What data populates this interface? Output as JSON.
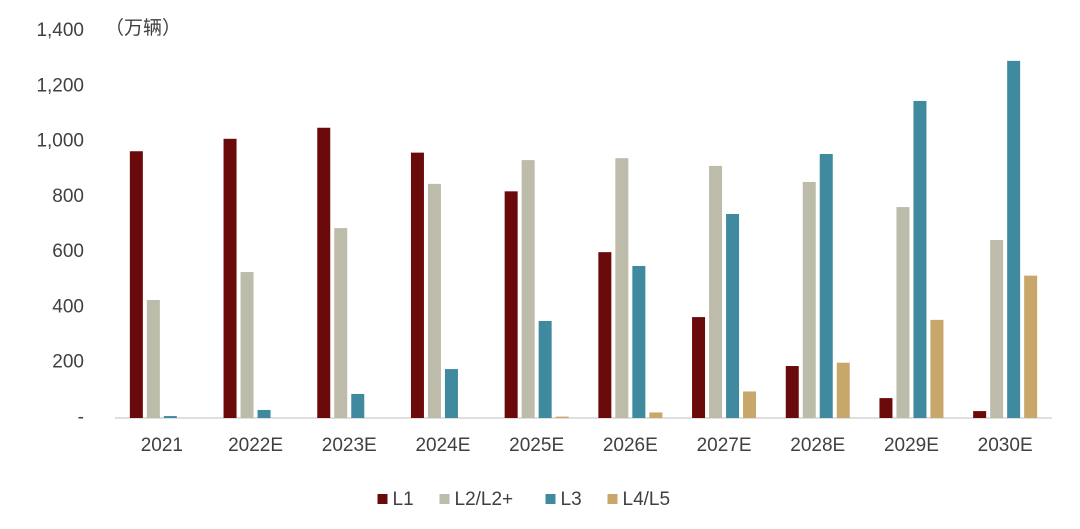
{
  "chart_data": {
    "type": "bar",
    "unit_label": "（万辆）",
    "categories": [
      "2021",
      "2022E",
      "2023E",
      "2024E",
      "2025E",
      "2026E",
      "2027E",
      "2028E",
      "2029E",
      "2030E"
    ],
    "series": [
      {
        "name": "L1",
        "color": "#6b0a0a",
        "values": [
          965,
          1010,
          1050,
          960,
          820,
          600,
          365,
          188,
          72,
          25
        ]
      },
      {
        "name": "L2/L2+",
        "color": "#bdbba9",
        "values": [
          427,
          528,
          687,
          847,
          933,
          940,
          912,
          854,
          763,
          644
        ]
      },
      {
        "name": "L3",
        "color": "#3f8a9e",
        "values": [
          7,
          29,
          87,
          177,
          351,
          550,
          738,
          955,
          1147,
          1292
        ]
      },
      {
        "name": "L4/L5",
        "color": "#c8a76a",
        "values": [
          0,
          0,
          0,
          0,
          5,
          20,
          96,
          200,
          355,
          515
        ]
      }
    ],
    "ylim": [
      0,
      1400
    ],
    "yticks": [
      {
        "value": 0,
        "label": "-"
      },
      200,
      400,
      600,
      800,
      {
        "value": 1000,
        "label": "1,000"
      },
      {
        "value": 1200,
        "label": "1,200"
      },
      {
        "value": 1400,
        "label": "1,400"
      }
    ],
    "grid": false,
    "legend": "bottom"
  }
}
